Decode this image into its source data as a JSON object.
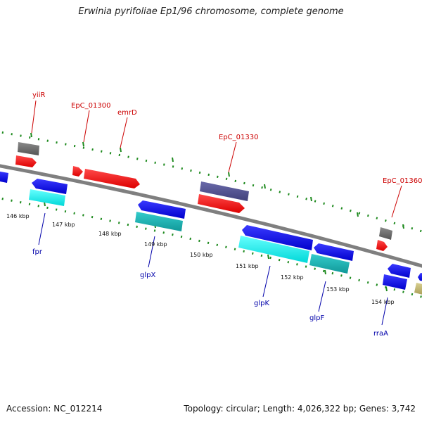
{
  "title": "Erwinia pyrifoliae Ep1/96 chromosome, complete genome",
  "footer": {
    "accession": "Accession: NC_012214",
    "topology": "Topology: circular; Length: 4,026,322 bp; Genes: 3,742"
  },
  "colors": {
    "backbone": "#7f7f7f",
    "tick": "#1e8a1e",
    "forward_label": "#cc0000",
    "reverse_label": "#0000aa",
    "kbp_label": "#111111"
  },
  "kbp_labels": [
    "146 kbp",
    "147 kbp",
    "148 kbp",
    "149 kbp",
    "150 kbp",
    "151 kbp",
    "152 kbp",
    "153 kbp",
    "154 kbp"
  ],
  "forward_labels": [
    "yiiR",
    "EpC_01300",
    "emrD",
    "EpC_01330",
    "EpC_01360"
  ],
  "reverse_labels": [
    "fpr",
    "glpX",
    "glpK",
    "glpF",
    "rraA"
  ]
}
